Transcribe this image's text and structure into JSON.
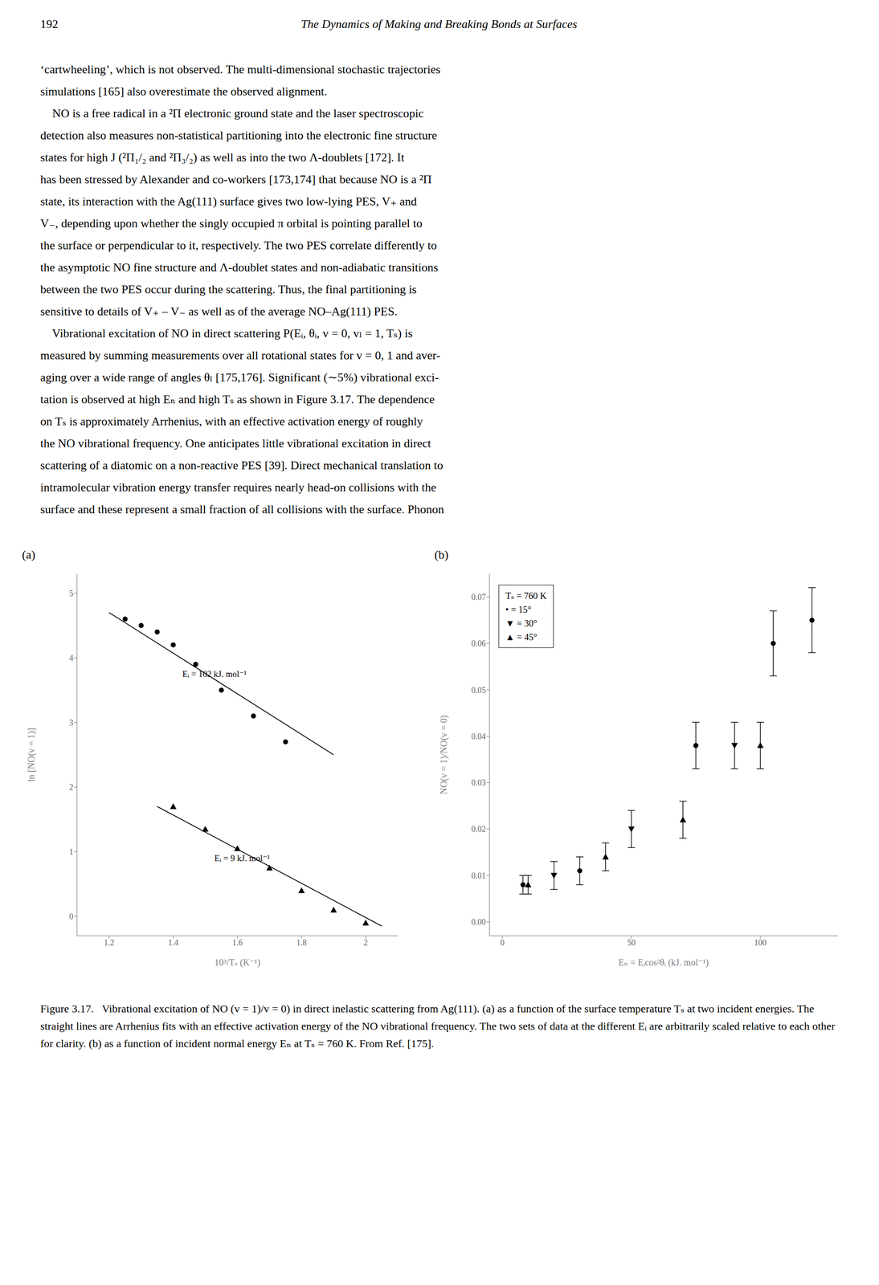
{
  "page_number": "192",
  "header": "The Dynamics of Making and Breaking Bonds at Surfaces",
  "body_text": [
    "‘cartwheeling’, which is not observed. The multi-dimensional stochastic trajectories",
    "simulations [165] also overestimate the observed alignment.",
    "    NO is a free radical in a ²Π electronic ground state and the laser spectroscopic",
    "detection also measures non-statistical partitioning into the electronic fine structure",
    "states for high J (²Π₁/₂ and ²Π₃/₂) as well as into the two Λ-doublets [172]. It",
    "has been stressed by Alexander and co-workers [173,174] that because NO is a ²Π",
    "state, its interaction with the Ag(111) surface gives two low-lying PES, V₊ and",
    "V₋, depending upon whether the singly occupied π orbital is pointing parallel to",
    "the surface or perpendicular to it, respectively. The two PES correlate differently to",
    "the asymptotic NO fine structure and Λ-doublet states and non-adiabatic transitions",
    "between the two PES occur during the scattering. Thus, the final partitioning is",
    "sensitive to details of V₊ – V₋ as well as of the average NO–Ag(111) PES.",
    "    Vibrational excitation of NO in direct scattering P(Eᵢ, θᵢ, v = 0, vₗ = 1, Tₛ) is",
    "measured by summing measurements over all rotational states for v = 0, 1 and aver-",
    "aging over a wide range of angles θₗ [175,176]. Significant (∼5%) vibrational exci-",
    "tation is observed at high Eₙ and high Tₛ as shown in Figure 3.17. The dependence",
    "on Tₛ is approximately Arrhenius, with an effective activation energy of roughly",
    "the NO vibrational frequency. One anticipates little vibrational excitation in direct",
    "scattering of a diatomic on a non-reactive PES [39]. Direct mechanical translation to",
    "intramolecular vibration energy transfer requires nearly head-on collisions with the",
    "surface and these represent a small fraction of all collisions with the surface. Phonon"
  ],
  "caption": "Figure 3.17.   Vibrational excitation of NO (v = 1)/v = 0) in direct inelastic scattering from Ag(111). (a) as a function of the surface temperature Tₛ at two incident energies. The straight lines are Arrhenius fits with an effective activation energy of the NO vibrational frequency. The two sets of data at the different Eᵢ are arbitrarily scaled relative to each other for clarity. (b) as a function of incident normal energy Eₙ at Tₛ = 760 K. From Ref. [175].",
  "chart_data": [
    {
      "type": "scatter",
      "title": "(a)",
      "x_label": "10³/Tₛ (K⁻¹)",
      "y_label": "ln [NO(v = 1)]",
      "xlim": [
        1.1,
        2.1
      ],
      "ylim": [
        -0.3,
        5.3
      ],
      "xticks": [
        1.2,
        1.4,
        1.6,
        1.8,
        2.0
      ],
      "yticks": [
        0,
        1,
        2,
        3,
        4,
        5
      ],
      "grid": false,
      "series": [
        {
          "type": "scatter",
          "marker": "circle",
          "color": "#000000",
          "x": [
            1.25,
            1.3,
            1.35,
            1.4,
            1.47,
            1.55,
            1.65,
            1.75
          ],
          "values": [
            4.6,
            4.5,
            4.4,
            4.2,
            3.9,
            3.5,
            3.1,
            2.7
          ]
        },
        {
          "type": "scatter",
          "marker": "triangle_up",
          "color": "#000000",
          "x": [
            1.4,
            1.5,
            1.6,
            1.7,
            1.8,
            1.9,
            2.0
          ],
          "values": [
            1.7,
            1.35,
            1.05,
            0.75,
            0.4,
            0.1,
            -0.1
          ]
        },
        {
          "type": "line",
          "line_style": "solid",
          "color": "#000000",
          "x": [
            1.2,
            1.9
          ],
          "values": [
            4.7,
            2.5
          ]
        },
        {
          "type": "line",
          "line_style": "solid",
          "color": "#000000",
          "x": [
            1.35,
            2.05
          ],
          "values": [
            1.7,
            -0.15
          ]
        }
      ],
      "annotations": [
        {
          "text": "Eᵢ = 102 kJ. mol⁻¹",
          "x": 1.42,
          "y": 3.75
        },
        {
          "text": "Eᵢ = 9 kJ. mol⁻¹",
          "x": 1.52,
          "y": 0.9
        }
      ]
    },
    {
      "type": "scatter",
      "title": "(b)",
      "x_label": "Eₙ = Eᵢcos²θᵢ (kJ. mol⁻¹)",
      "y_label": "NO(v = 1)/NO(v = 0)",
      "xlim": [
        -5,
        130
      ],
      "ylim": [
        -0.003,
        0.075
      ],
      "xticks": [
        0,
        50,
        100
      ],
      "yticks": [
        {
          "value": 0,
          "label": "0.00"
        },
        0.01,
        0.02,
        0.03,
        0.04,
        0.05,
        0.06,
        0.07
      ],
      "grid": false,
      "legend": "upper left",
      "legend_title": "Tₛ = 760 K",
      "series": [
        {
          "type": "scatter",
          "name": "• = 15°",
          "marker": "circle",
          "color": "#000000",
          "x": [
            8,
            30,
            75,
            105,
            120
          ],
          "values": [
            0.008,
            0.011,
            0.038,
            0.06,
            0.065
          ],
          "errors": [
            0.002,
            0.003,
            0.005,
            0.007,
            0.007
          ]
        },
        {
          "type": "scatter",
          "name": "▼ = 30°",
          "marker": "triangle_down",
          "color": "#000000",
          "x": [
            20,
            50,
            90
          ],
          "values": [
            0.01,
            0.02,
            0.038
          ],
          "errors": [
            0.003,
            0.004,
            0.005
          ]
        },
        {
          "type": "scatter",
          "name": "▲ = 45°",
          "marker": "triangle_up",
          "color": "#000000",
          "x": [
            10,
            40,
            70,
            100
          ],
          "values": [
            0.008,
            0.014,
            0.022,
            0.038
          ],
          "errors": [
            0.002,
            0.003,
            0.004,
            0.005
          ]
        }
      ]
    }
  ]
}
